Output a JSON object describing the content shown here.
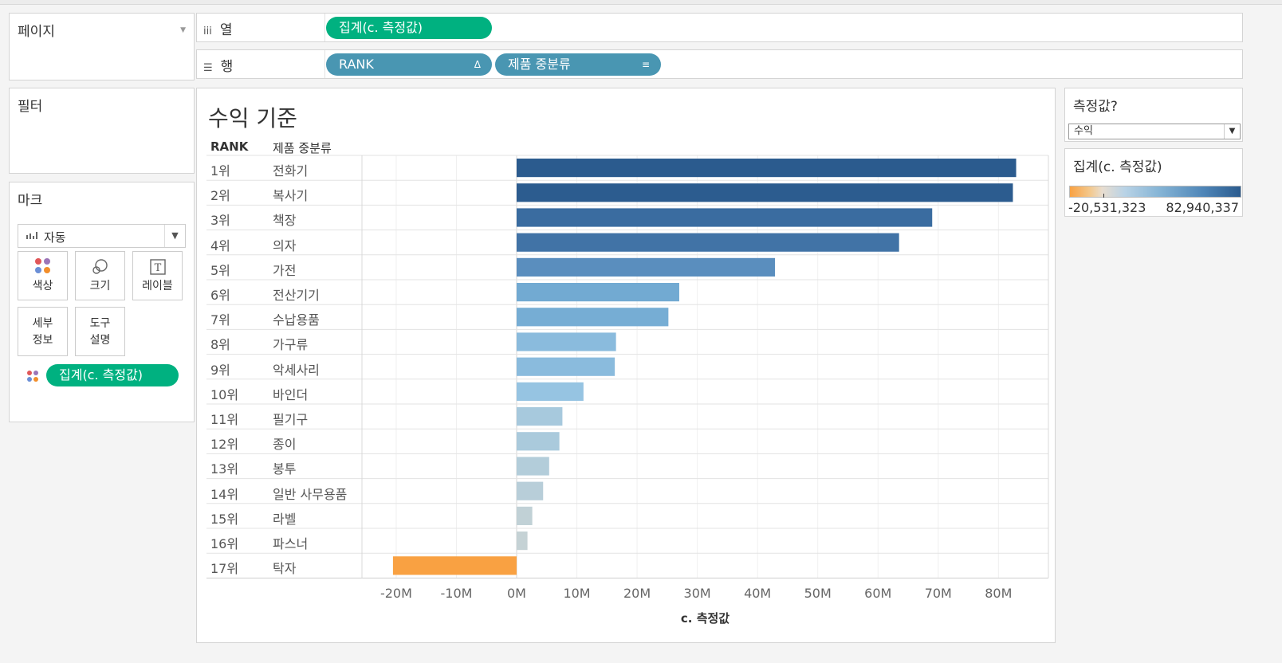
{
  "left_panel": {
    "pages_title": "페이지",
    "filters_title": "필터",
    "marks_title": "마크",
    "mark_type": "자동",
    "mark_buttons": {
      "color": "색상",
      "size": "크기",
      "label": "레이블",
      "detail": "세부\n정보",
      "tooltip": "도구\n설명"
    },
    "color_pill": "집계(c. 측정값)"
  },
  "shelves": {
    "columns_label": "열",
    "columns_pill": "집계(c. 측정값)",
    "rows_label": "행",
    "rows_pills": [
      "RANK",
      "제품 중분류"
    ],
    "rank_sort_icon": "Δ"
  },
  "view": {
    "title": "수익 기준",
    "header_rank": "RANK",
    "header_category": "제품 중분류",
    "x_axis_title": "c. 측정값"
  },
  "parameter": {
    "title": "측정값?",
    "value": "수익"
  },
  "color_legend": {
    "title": "집계(c. 측정값)",
    "min": "-20,531,323",
    "max": "82,940,337",
    "color_min": "#f9a142",
    "color_max": "#2b5b8e"
  },
  "chart_data": {
    "type": "bar",
    "orientation": "horizontal",
    "title": "수익 기준",
    "xlabel": "c. 측정값",
    "xlim": [
      -25000000,
      88000000
    ],
    "ticks": [
      {
        "v": -20000000,
        "label": "-20M"
      },
      {
        "v": -10000000,
        "label": "-10M"
      },
      {
        "v": 0,
        "label": "0M"
      },
      {
        "v": 10000000,
        "label": "10M"
      },
      {
        "v": 20000000,
        "label": "20M"
      },
      {
        "v": 30000000,
        "label": "30M"
      },
      {
        "v": 40000000,
        "label": "40M"
      },
      {
        "v": 50000000,
        "label": "50M"
      },
      {
        "v": 60000000,
        "label": "60M"
      },
      {
        "v": 70000000,
        "label": "70M"
      },
      {
        "v": 80000000,
        "label": "80M"
      }
    ],
    "grid": true,
    "rows": [
      {
        "rank": "1위",
        "category": "전화기",
        "value": 82940337
      },
      {
        "rank": "2위",
        "category": "복사기",
        "value": 82400000
      },
      {
        "rank": "3위",
        "category": "책장",
        "value": 69000000
      },
      {
        "rank": "4위",
        "category": "의자",
        "value": 63500000
      },
      {
        "rank": "5위",
        "category": "가전",
        "value": 42900000
      },
      {
        "rank": "6위",
        "category": "전산기기",
        "value": 27000000
      },
      {
        "rank": "7위",
        "category": "수납용품",
        "value": 25200000
      },
      {
        "rank": "8위",
        "category": "가구류",
        "value": 16500000
      },
      {
        "rank": "9위",
        "category": "악세사리",
        "value": 16300000
      },
      {
        "rank": "10위",
        "category": "바인더",
        "value": 11100000
      },
      {
        "rank": "11위",
        "category": "필기구",
        "value": 7600000
      },
      {
        "rank": "12위",
        "category": "종이",
        "value": 7100000
      },
      {
        "rank": "13위",
        "category": "봉투",
        "value": 5400000
      },
      {
        "rank": "14위",
        "category": "일반 사무용품",
        "value": 4400000
      },
      {
        "rank": "15위",
        "category": "라벨",
        "value": 2600000
      },
      {
        "rank": "16위",
        "category": "파스너",
        "value": 1800000
      },
      {
        "rank": "17위",
        "category": "탁자",
        "value": -20531323
      }
    ]
  }
}
